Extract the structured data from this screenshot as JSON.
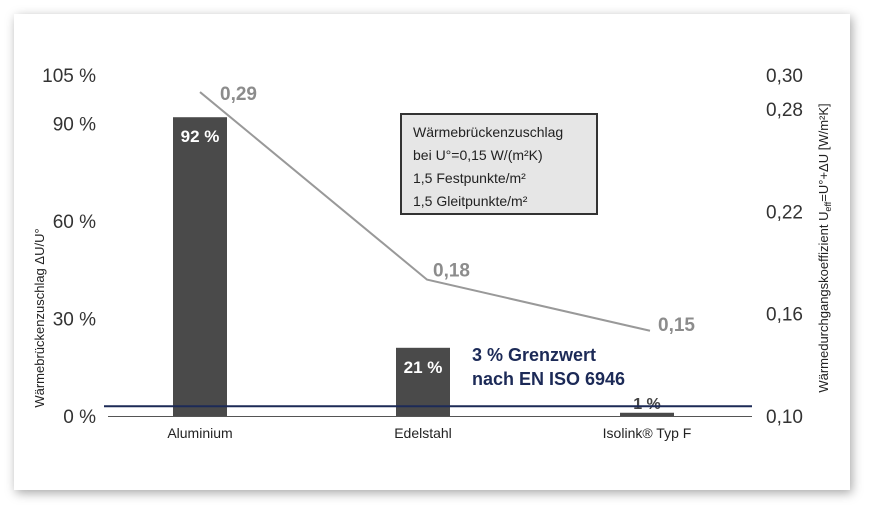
{
  "chart_data": {
    "type": "bar",
    "categories": [
      "Aluminium",
      "Edelstahl",
      "Isolink® Typ F"
    ],
    "series": [
      {
        "values": [
          92,
          21,
          1
        ],
        "labels": [
          "92 %",
          "21 %",
          "1 %"
        ],
        "axis": "left",
        "color": "#4a4a4a"
      },
      {
        "values": [
          0.29,
          0.18,
          0.15
        ],
        "labels": [
          "0,29",
          "0,18",
          "0,15"
        ],
        "axis": "right",
        "type": "line",
        "color": "#999999"
      }
    ],
    "left_axis": {
      "label": "Wärmebrückenzuschlag ΔU/U°",
      "ylim": [
        0,
        105
      ],
      "ticks": [
        0,
        30,
        60,
        90,
        105
      ],
      "tick_labels": [
        "0 %",
        "30 %",
        "60 %",
        "90 %",
        "105 %"
      ]
    },
    "right_axis": {
      "label_pre": "Wärmedurchgangskoeffizient U",
      "label_sub": "eff",
      "label_post": "=U°+ΔU [W/m²K]",
      "ylim": [
        0.1,
        0.3
      ],
      "ticks": [
        0.1,
        0.16,
        0.22,
        0.28,
        0.3
      ],
      "tick_labels": [
        "0,10",
        "0,16",
        "0,22",
        "0,28",
        "0,30"
      ]
    },
    "reference_line": {
      "value": 3,
      "label_line1": "3 % Grenzwert",
      "label_line2": "nach EN ISO 6946",
      "color": "#1c2a57"
    },
    "info_box": {
      "lines": [
        "Wärmebrückenzuschlag",
        "bei U°=0,15 W/(m²K)",
        "1,5 Festpunkte/m²",
        "1,5 Gleitpunkte/m²"
      ]
    },
    "grid": false,
    "legend": "none"
  }
}
